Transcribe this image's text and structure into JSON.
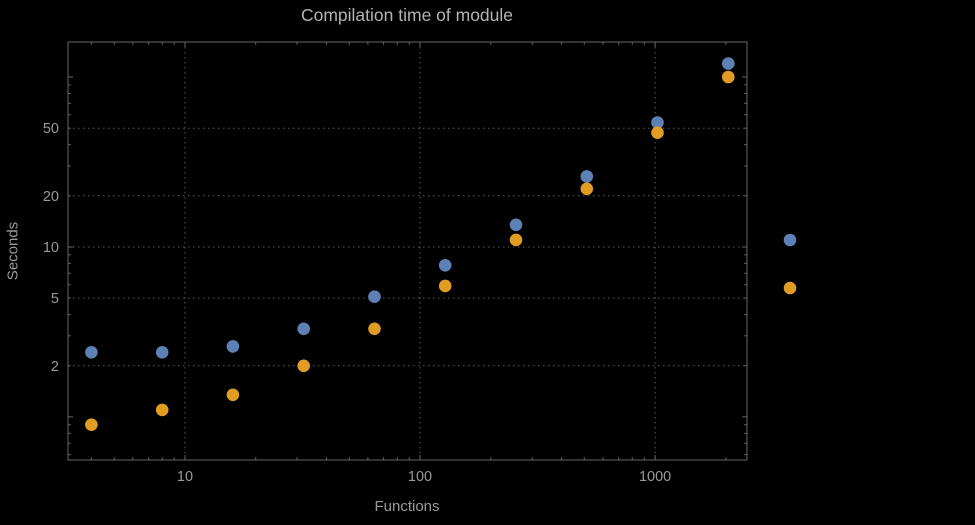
{
  "chart_data": {
    "type": "scatter",
    "title": "Compilation time of module",
    "xlabel": "Functions",
    "ylabel": "Seconds",
    "x_scale": "log",
    "y_scale": "log",
    "xlim": [
      3.18,
      2460
    ],
    "ylim": [
      0.558,
      160.7
    ],
    "x_ticks": [
      10,
      100,
      1000
    ],
    "y_ticks": [
      2,
      5,
      10,
      20,
      50
    ],
    "grid": true,
    "x": [
      4,
      8,
      16,
      32,
      64,
      128,
      256,
      512,
      1024,
      2048
    ],
    "series": [
      {
        "name": "series-1-blue",
        "color": "#5E81B5",
        "values": [
          2.4,
          2.4,
          2.6,
          3.3,
          5.1,
          7.8,
          13.5,
          26,
          54,
          120
        ]
      },
      {
        "name": "series-2-orange",
        "color": "#E19C24",
        "values": [
          0.9,
          1.1,
          1.35,
          2.0,
          3.3,
          5.9,
          11,
          22,
          47,
          100
        ]
      }
    ],
    "legend": {
      "items": [
        {
          "label": "",
          "color": "#5E81B5"
        },
        {
          "label": "",
          "color": "#E19C24"
        }
      ]
    },
    "colors": {
      "background": "#000000",
      "frame": "#666666",
      "grid": "#5c5c5c",
      "text": "#9a9a9a",
      "title": "#b3b3b3"
    }
  }
}
